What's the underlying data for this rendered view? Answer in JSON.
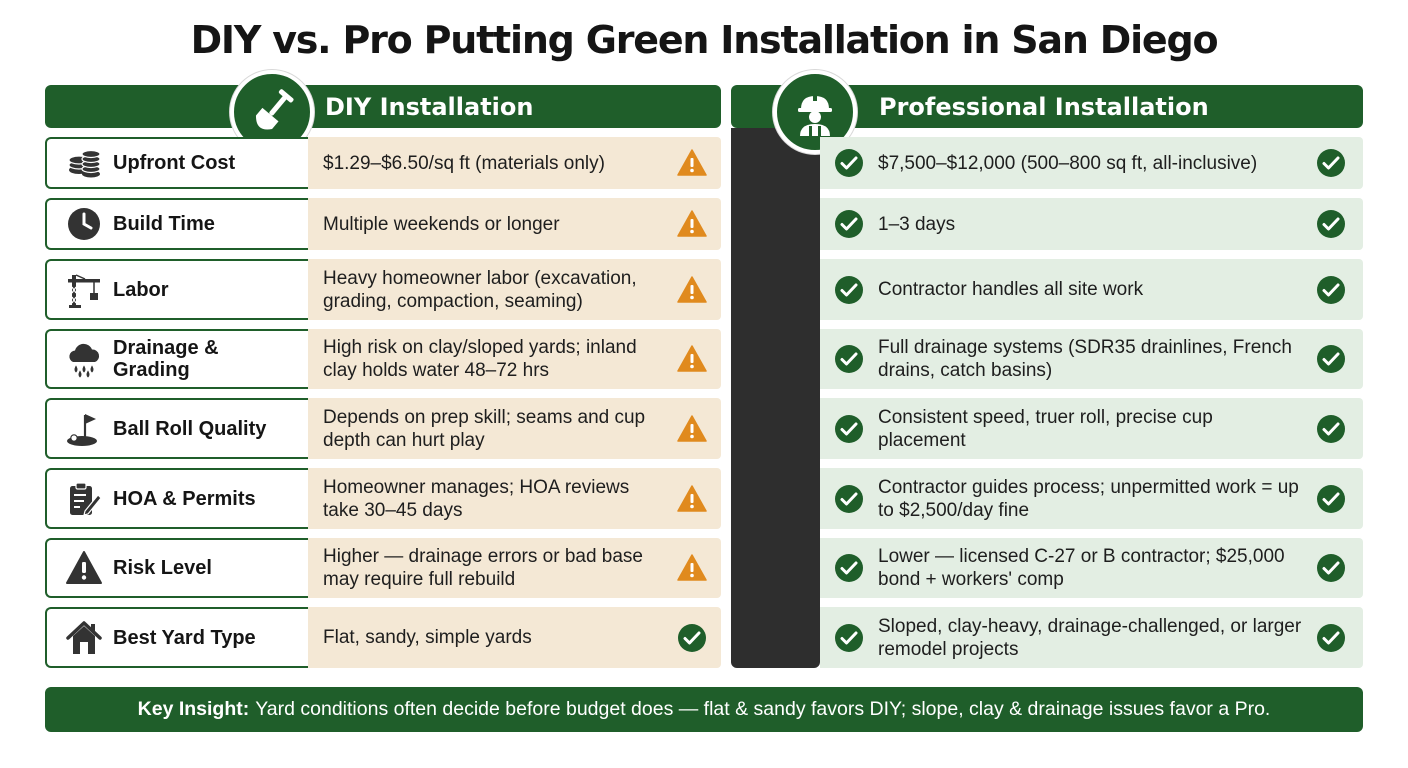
{
  "title": "DIY vs. Pro Putting Green Installation in San Diego",
  "headers": {
    "diy": "DIY Installation",
    "pro": "Professional Installation"
  },
  "colors": {
    "primary_green": "#1f5e2a",
    "diy_bg": "#f4e8d5",
    "pro_bg": "#e3eee3",
    "warning": "#e08a1e",
    "divider": "#2e2e2e"
  },
  "rows": [
    {
      "label": "Upfront Cost",
      "icon": "coins-icon",
      "diy": "$1.29–$6.50/sq ft (materials only)",
      "diy_status": "warning",
      "pro": "$7,500–$12,000 (500–800 sq ft, all-inclusive)"
    },
    {
      "label": "Build Time",
      "icon": "clock-icon",
      "diy": "Multiple weekends or longer",
      "diy_status": "warning",
      "pro": "1–3 days"
    },
    {
      "label": "Labor",
      "icon": "crane-icon",
      "diy": "Heavy homeowner labor (excavation, grading, compaction, seaming)",
      "diy_status": "warning",
      "pro": "Contractor handles all site work"
    },
    {
      "label": "Drainage & Grading",
      "icon": "rain-cloud-icon",
      "diy": "High risk on clay/sloped yards; inland clay holds water 48–72 hrs",
      "diy_status": "warning",
      "pro": "Full drainage systems (SDR35 drainlines, French drains, catch basins)"
    },
    {
      "label": "Ball Roll Quality",
      "icon": "golf-flag-icon",
      "diy": "Depends on prep skill; seams and cup depth can hurt play",
      "diy_status": "warning",
      "pro": "Consistent speed, truer roll, precise cup placement"
    },
    {
      "label": "HOA & Permits",
      "icon": "clipboard-pen-icon",
      "diy": "Homeowner manages; HOA reviews take 30–45 days",
      "diy_status": "warning",
      "pro": "Contractor guides process; unpermitted work = up to $2,500/day fine"
    },
    {
      "label": "Risk Level",
      "icon": "warning-triangle-icon",
      "diy": "Higher — drainage errors or bad base may require full rebuild",
      "diy_status": "warning",
      "pro": "Lower — licensed C-27 or B contractor; $25,000 bond + workers' comp"
    },
    {
      "label": "Best Yard Type",
      "icon": "house-icon",
      "diy": "Flat, sandy, simple yards",
      "diy_status": "check",
      "pro": "Sloped, clay-heavy, drainage-challenged, or larger remodel projects"
    }
  ],
  "insight": {
    "label": "Key Insight:",
    "text": "Yard conditions often decide before budget does — flat & sandy favors DIY; slope, clay & drainage issues favor a Pro."
  }
}
